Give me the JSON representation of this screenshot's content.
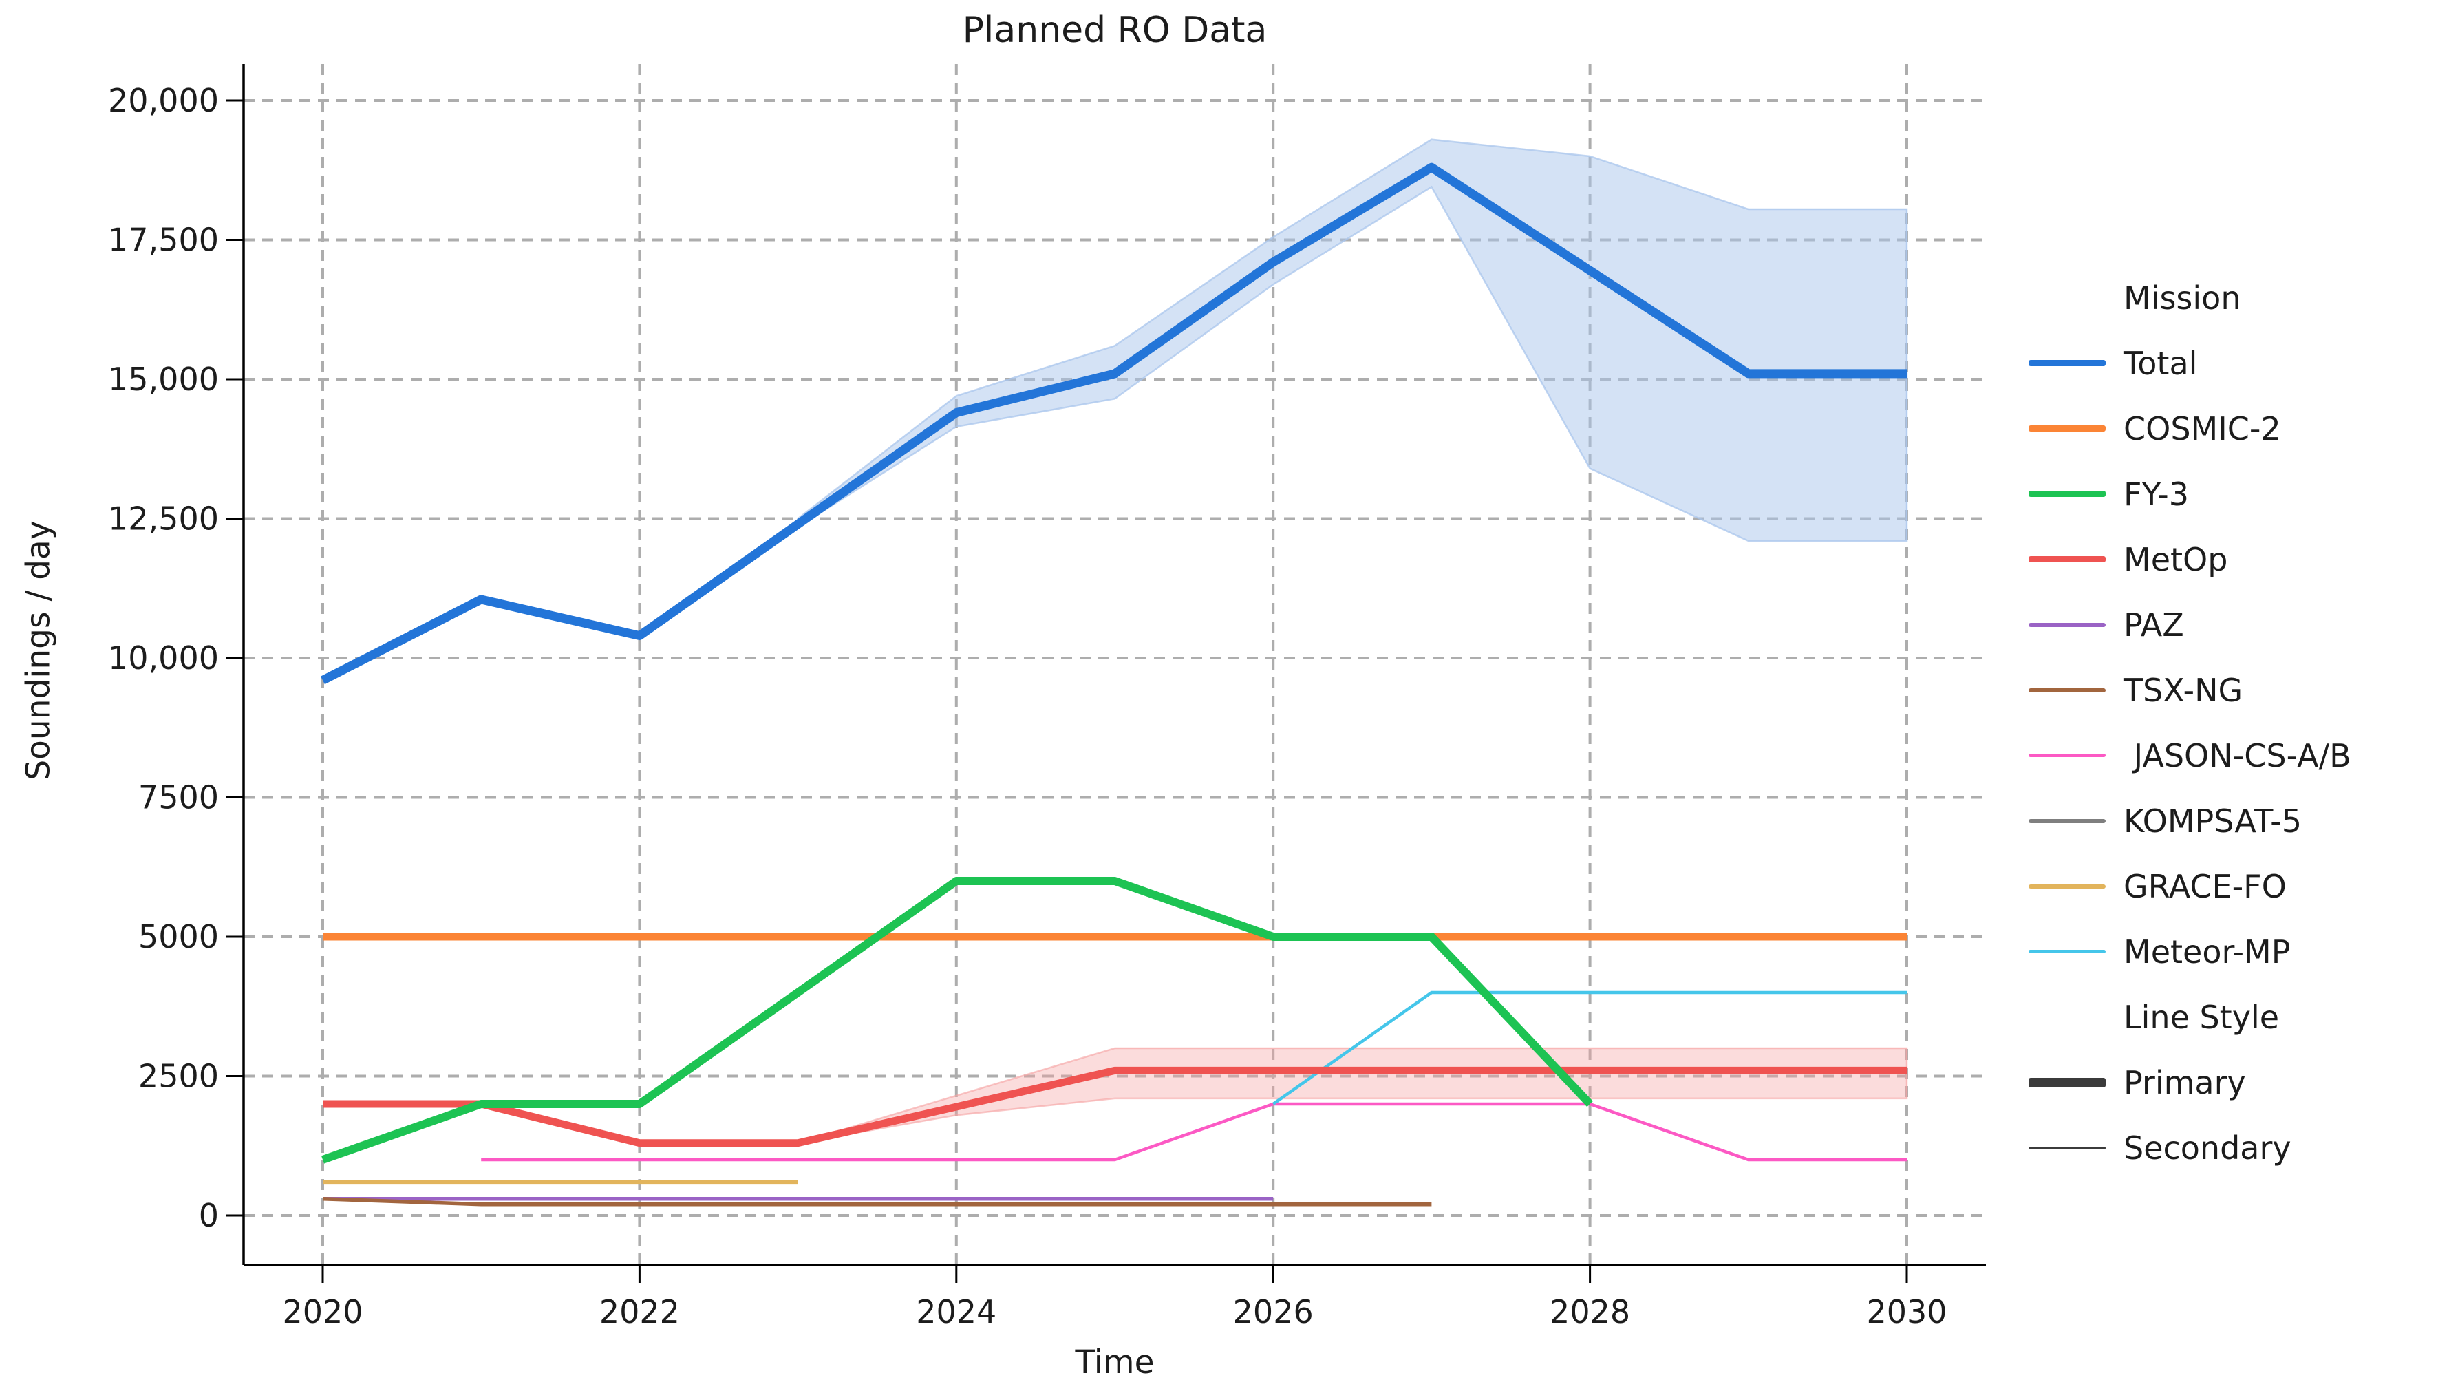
{
  "figure": {
    "title": "Planned RO Data",
    "x_axis_label": "Time",
    "y_axis_label": "Soundings / day"
  },
  "chart_data": {
    "type": "line",
    "title": "Planned RO Data",
    "xlabel": "Time",
    "ylabel": "Soundings / day",
    "grid": true,
    "legend_position": "right-outside",
    "xlim": [
      2019.5,
      2030.5
    ],
    "ylim": [
      -880,
      20650
    ],
    "x_ticks": [
      {
        "v": 2020,
        "label": "2020"
      },
      {
        "v": 2022,
        "label": "2022"
      },
      {
        "v": 2024,
        "label": "2024"
      },
      {
        "v": 2026,
        "label": "2026"
      },
      {
        "v": 2028,
        "label": "2028"
      },
      {
        "v": 2030,
        "label": "2030"
      }
    ],
    "y_ticks": [
      {
        "v": 0,
        "label": "0"
      },
      {
        "v": 2500,
        "label": "2500"
      },
      {
        "v": 5000,
        "label": "5000"
      },
      {
        "v": 7500,
        "label": "7500"
      },
      {
        "v": 10000,
        "label": "10,000"
      },
      {
        "v": 12500,
        "label": "12,500"
      },
      {
        "v": 15000,
        "label": "15,000"
      },
      {
        "v": 17500,
        "label": "17,500"
      },
      {
        "v": 20000,
        "label": "20,000"
      }
    ],
    "bands": [
      {
        "series": "Total",
        "color": "#a9c6ec",
        "opacity": 0.5,
        "x": [
          2023,
          2024,
          2025,
          2026,
          2027,
          2028,
          2029,
          2030
        ],
        "lower": [
          12350,
          14150,
          14650,
          16700,
          18450,
          13400,
          12100,
          12100
        ],
        "upper": [
          12500,
          14700,
          15600,
          17550,
          19300,
          19000,
          18050,
          18050
        ]
      },
      {
        "series": "MetOp",
        "color": "#f5a3a3",
        "opacity": 0.38,
        "x": [
          2023,
          2024,
          2025,
          2026,
          2027,
          2028,
          2029,
          2030
        ],
        "lower": [
          1300,
          1800,
          2100,
          2100,
          2100,
          2100,
          2100,
          2100
        ],
        "upper": [
          1300,
          2150,
          3000,
          3000,
          3000,
          3000,
          3000,
          3000
        ]
      }
    ],
    "series": [
      {
        "name": "KOMPSAT-5",
        "color": "#7f7f7f",
        "style": "secondary",
        "width": 5,
        "x": [
          2020,
          2021,
          2022,
          2023
        ],
        "values": [
          600,
          600,
          600,
          600
        ],
        "note": "hidden beneath GRACE-FO line in the image"
      },
      {
        "name": "GRACE-FO",
        "color": "#e2b45c",
        "style": "secondary",
        "width": 5.5,
        "x": [
          2020,
          2021,
          2022,
          2023
        ],
        "values": [
          600,
          600,
          600,
          600
        ]
      },
      {
        "name": "PAZ",
        "color": "#9a63c5",
        "style": "secondary",
        "width": 5.5,
        "x": [
          2020,
          2021,
          2022,
          2023,
          2024,
          2025,
          2026
        ],
        "values": [
          300,
          300,
          300,
          300,
          300,
          300,
          300
        ]
      },
      {
        "name": "TSX-NG",
        "color": "#a2653e",
        "style": "secondary",
        "width": 5.5,
        "x": [
          2020,
          2021,
          2022,
          2023,
          2024,
          2025,
          2026,
          2027
        ],
        "values": [
          300,
          200,
          200,
          200,
          200,
          200,
          200,
          200
        ]
      },
      {
        "name": " JASON-CS-A/B",
        "color": "#fc59c4",
        "style": "secondary",
        "width": 4.5,
        "x": [
          2021,
          2022,
          2023,
          2024,
          2025,
          2026,
          2027,
          2028,
          2029,
          2030
        ],
        "values": [
          1000,
          1000,
          1000,
          1000,
          1000,
          2000,
          2000,
          2000,
          1000,
          1000
        ]
      },
      {
        "name": "Meteor-MP",
        "color": "#45c6ea",
        "style": "secondary",
        "width": 4.5,
        "x": [
          2026,
          2027,
          2028,
          2029,
          2030
        ],
        "values": [
          2000,
          4000,
          4000,
          4000,
          4000
        ]
      },
      {
        "name": "COSMIC-2",
        "color": "#fb8435",
        "style": "primary",
        "width": 11,
        "x": [
          2020,
          2021,
          2022,
          2023,
          2024,
          2025,
          2026,
          2027,
          2028,
          2029,
          2030
        ],
        "values": [
          5000,
          5000,
          5000,
          5000,
          5000,
          5000,
          5000,
          5000,
          5000,
          5000,
          5000
        ]
      },
      {
        "name": "MetOp",
        "color": "#ef5351",
        "style": "primary",
        "width": 11,
        "x": [
          2020,
          2021,
          2022,
          2023,
          2024,
          2025,
          2026,
          2027,
          2028,
          2029,
          2030
        ],
        "values": [
          2000,
          2000,
          1300,
          1300,
          1950,
          2600,
          2600,
          2600,
          2600,
          2600,
          2600
        ]
      },
      {
        "name": "FY-3",
        "color": "#1dc353",
        "style": "primary",
        "width": 12,
        "x": [
          2020,
          2021,
          2022,
          2023,
          2024,
          2025,
          2026,
          2027,
          2028
        ],
        "values": [
          1000,
          2000,
          2000,
          4000,
          6000,
          6000,
          5000,
          5000,
          2000
        ]
      },
      {
        "name": "Total",
        "color": "#2375d8",
        "style": "primary",
        "width": 13,
        "x": [
          2020,
          2021,
          2022,
          2023,
          2024,
          2025,
          2026,
          2027,
          2028,
          2029,
          2030
        ],
        "values": [
          9600,
          11050,
          10400,
          12400,
          14400,
          15100,
          17100,
          18800,
          16950,
          15100,
          15100
        ]
      }
    ]
  },
  "legend": {
    "sections": [
      {
        "title": "Mission",
        "items": [
          {
            "label": "Total",
            "color": "#2375d8",
            "swatch_weight": 9
          },
          {
            "label": "COSMIC-2",
            "color": "#fb8435",
            "swatch_weight": 9
          },
          {
            "label": "FY-3",
            "color": "#1dc353",
            "swatch_weight": 9
          },
          {
            "label": "MetOp",
            "color": "#ef5351",
            "swatch_weight": 9
          },
          {
            "label": "PAZ",
            "color": "#9a63c5",
            "swatch_weight": 6
          },
          {
            "label": "TSX-NG",
            "color": "#a2653e",
            "swatch_weight": 6
          },
          {
            "label": " JASON-CS-A/B",
            "color": "#fc59c4",
            "swatch_weight": 5
          },
          {
            "label": "KOMPSAT-5",
            "color": "#7f7f7f",
            "swatch_weight": 6
          },
          {
            "label": "GRACE-FO",
            "color": "#e2b45c",
            "swatch_weight": 6
          },
          {
            "label": "Meteor-MP",
            "color": "#45c6ea",
            "swatch_weight": 5
          }
        ]
      },
      {
        "title": "Line Style",
        "items": [
          {
            "label": "Primary",
            "color": "#3b3b3b",
            "swatch_weight": 14
          },
          {
            "label": "Secondary",
            "color": "#3b3b3b",
            "swatch_weight": 4
          }
        ]
      }
    ]
  },
  "style": {
    "grid_color": "#adadad",
    "spine_color": "#000000",
    "text_color": "#1c1c1c",
    "background": "#ffffff"
  }
}
